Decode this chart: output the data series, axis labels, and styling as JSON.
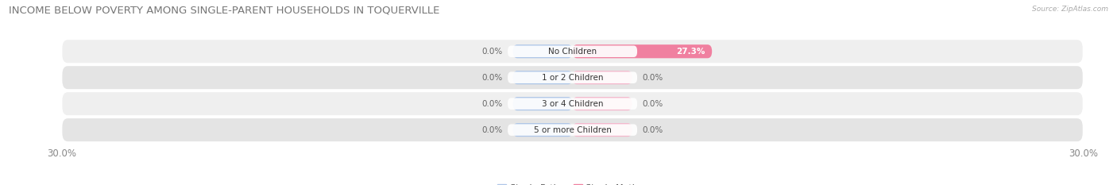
{
  "title": "INCOME BELOW POVERTY AMONG SINGLE-PARENT HOUSEHOLDS IN TOQUERVILLE",
  "source_text": "Source: ZipAtlas.com",
  "categories": [
    "No Children",
    "1 or 2 Children",
    "3 or 4 Children",
    "5 or more Children"
  ],
  "single_father_values": [
    0.0,
    0.0,
    0.0,
    0.0
  ],
  "single_mother_values": [
    27.3,
    0.0,
    0.0,
    0.0
  ],
  "father_color": "#aec6e8",
  "mother_color": "#f080a0",
  "mother_color_stub": "#f4b8cc",
  "row_bg_odd": "#efefef",
  "row_bg_even": "#e4e4e4",
  "x_min": -30.0,
  "x_max": 30.0,
  "x_tick_labels": [
    "30.0%",
    "30.0%"
  ],
  "title_fontsize": 9.5,
  "label_fontsize": 7.5,
  "tick_fontsize": 8.5,
  "legend_fontsize": 8,
  "stub_father": 3.5,
  "stub_mother": 3.5
}
